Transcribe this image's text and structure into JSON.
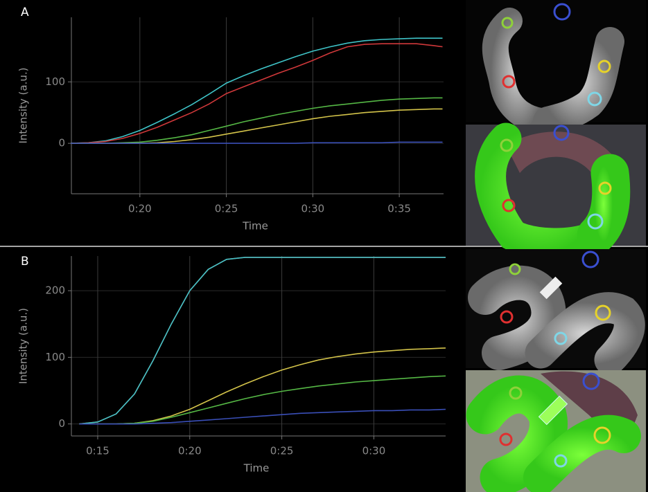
{
  "chart_data": [
    {
      "type": "line",
      "panel_label": "A",
      "xlabel": "Time",
      "ylabel": "Intensity (a.u.)",
      "grid": true,
      "xlim": [
        16.04,
        37.56
      ],
      "ylim": [
        -82,
        205
      ],
      "xticks": [
        {
          "value": 20,
          "label": "0:20"
        },
        {
          "value": 25,
          "label": "0:25"
        },
        {
          "value": 30,
          "label": "0:30"
        },
        {
          "value": 35,
          "label": "0:35"
        }
      ],
      "yticks": [
        0,
        100
      ],
      "x": [
        16,
        17,
        18,
        19,
        20,
        21,
        22,
        23,
        24,
        25,
        26,
        27,
        28,
        29,
        30,
        31,
        32,
        33,
        34,
        35,
        36,
        37,
        37.5
      ],
      "series": [
        {
          "color": "#3fc4c8",
          "values": [
            0,
            1,
            4,
            11,
            21,
            34,
            48,
            63,
            80,
            98,
            110,
            121,
            131,
            141,
            150,
            157,
            163,
            167,
            169,
            170,
            171,
            171,
            171
          ]
        },
        {
          "color": "#d0383a",
          "values": [
            0,
            1,
            3,
            8,
            16,
            26,
            38,
            50,
            64,
            81,
            92,
            103,
            114,
            124,
            135,
            147,
            157,
            161,
            162,
            162,
            162,
            159,
            157
          ]
        },
        {
          "color": "#55b845",
          "values": [
            0,
            0,
            0,
            1,
            2,
            5,
            9,
            14,
            21,
            28,
            35,
            41,
            47,
            52,
            57,
            61,
            64,
            67,
            70,
            72,
            73,
            74,
            74
          ]
        },
        {
          "color": "#d4c44a",
          "values": [
            0,
            0,
            0,
            0,
            0,
            1,
            3,
            6,
            10,
            15,
            20,
            25,
            30,
            35,
            40,
            44,
            47,
            50,
            52,
            54,
            55,
            56,
            56
          ]
        },
        {
          "color": "#3a4fb8",
          "values": [
            0,
            0,
            0,
            0,
            0,
            0,
            0,
            0,
            0,
            0,
            0,
            0,
            0,
            0,
            1,
            1,
            1,
            1,
            1,
            2,
            2,
            2,
            2
          ]
        }
      ]
    },
    {
      "type": "line",
      "panel_label": "B",
      "xlabel": "Time",
      "ylabel": "Intensity (a.u.)",
      "grid": true,
      "xlim": [
        13.57,
        33.9
      ],
      "ylim": [
        -18,
        252
      ],
      "xticks": [
        {
          "value": 15,
          "label": "0:15"
        },
        {
          "value": 20,
          "label": "0:20"
        },
        {
          "value": 25,
          "label": "0:25"
        },
        {
          "value": 30,
          "label": "0:30"
        }
      ],
      "yticks": [
        0,
        100,
        200
      ],
      "x": [
        14,
        15,
        16,
        17,
        18,
        19,
        20,
        21,
        22,
        23,
        24,
        25,
        26,
        27,
        28,
        29,
        30,
        31,
        32,
        33,
        33.9
      ],
      "series": [
        {
          "color": "#d0383a",
          "values": [
            0,
            3,
            15,
            45,
            95,
            150,
            200,
            232,
            247,
            250,
            250,
            250,
            250,
            250,
            250,
            250,
            250,
            250,
            250,
            250,
            250
          ]
        },
        {
          "color": "#3fc4c8",
          "values": [
            0,
            3,
            15,
            45,
            95,
            150,
            200,
            232,
            247,
            250,
            250,
            250,
            250,
            250,
            250,
            250,
            250,
            250,
            250,
            250,
            250
          ]
        },
        {
          "color": "#d4c44a",
          "values": [
            0,
            0,
            0,
            1,
            5,
            12,
            22,
            35,
            48,
            60,
            71,
            81,
            89,
            96,
            101,
            105,
            108,
            110,
            112,
            113,
            114
          ]
        },
        {
          "color": "#55b845",
          "values": [
            0,
            0,
            0,
            1,
            4,
            10,
            17,
            24,
            31,
            38,
            44,
            49,
            53,
            57,
            60,
            63,
            65,
            67,
            69,
            71,
            72
          ]
        },
        {
          "color": "#3a4fb8",
          "values": [
            0,
            0,
            0,
            0,
            1,
            2,
            4,
            6,
            8,
            10,
            12,
            14,
            16,
            17,
            18,
            19,
            20,
            20,
            21,
            21,
            22
          ]
        }
      ]
    }
  ]
}
